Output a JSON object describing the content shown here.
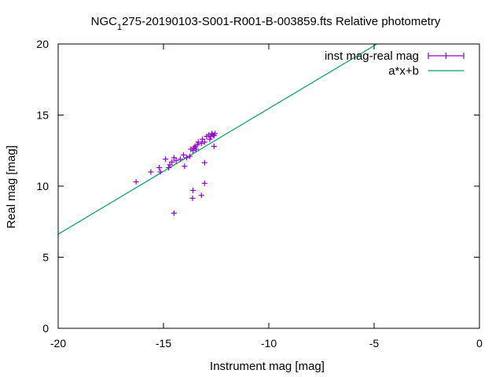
{
  "chart_data": {
    "type": "scatter",
    "title_main": "NGC",
    "title_sub": "1",
    "title_rest": "275-20190103-S001-R001-B-003859.fts Relative photometry",
    "xlabel": "Instrument mag [mag]",
    "ylabel": "Real mag [mag]",
    "xlim": [
      -20,
      0
    ],
    "ylim": [
      0,
      20
    ],
    "xticks": [
      "-20",
      "-15",
      "-10",
      "-5",
      "0"
    ],
    "yticks": [
      "0",
      "5",
      "10",
      "15",
      "20"
    ],
    "grid": false,
    "legend_position": "top-right",
    "colors": {
      "points": "#9400d3",
      "fit": "#009e73",
      "axes": "#000000"
    },
    "series": [
      {
        "name": "inst mag-real mag",
        "kind": "points-with-errorbars",
        "points": [
          [
            -16.3,
            10.3
          ],
          [
            -15.6,
            11.0
          ],
          [
            -15.2,
            11.3
          ],
          [
            -15.15,
            11.0
          ],
          [
            -14.9,
            11.9
          ],
          [
            -14.75,
            11.3
          ],
          [
            -14.7,
            11.5
          ],
          [
            -14.6,
            11.7
          ],
          [
            -14.5,
            12.0
          ],
          [
            -14.4,
            11.8
          ],
          [
            -14.5,
            8.1
          ],
          [
            -14.2,
            11.9
          ],
          [
            -14.05,
            12.2
          ],
          [
            -14.0,
            11.4
          ],
          [
            -13.9,
            12.0
          ],
          [
            -13.75,
            12.1
          ],
          [
            -13.7,
            12.6
          ],
          [
            -13.6,
            12.5
          ],
          [
            -13.55,
            12.7
          ],
          [
            -13.5,
            12.8
          ],
          [
            -13.45,
            12.6
          ],
          [
            -13.4,
            12.9
          ],
          [
            -13.35,
            13.1
          ],
          [
            -13.2,
            13.0
          ],
          [
            -13.15,
            13.3
          ],
          [
            -13.05,
            13.1
          ],
          [
            -12.95,
            13.5
          ],
          [
            -12.85,
            13.6
          ],
          [
            -12.8,
            13.3
          ],
          [
            -12.75,
            13.5
          ],
          [
            -12.7,
            13.7
          ],
          [
            -12.65,
            13.6
          ],
          [
            -12.6,
            13.55
          ],
          [
            -12.55,
            13.7
          ],
          [
            -12.6,
            12.8
          ],
          [
            -13.6,
            9.7
          ],
          [
            -13.62,
            9.15
          ],
          [
            -13.2,
            9.35
          ],
          [
            -13.05,
            10.2
          ],
          [
            -13.05,
            11.65
          ]
        ]
      },
      {
        "name": "a*x+b",
        "kind": "line",
        "slope": 0.884,
        "intercept": 24.3
      }
    ]
  }
}
